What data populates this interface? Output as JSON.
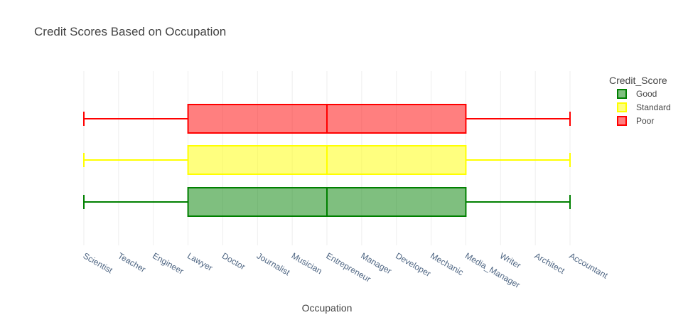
{
  "chart_data": {
    "type": "box",
    "orientation": "horizontal",
    "title": "Credit Scores Based on Occupation",
    "xlabel": "Occupation",
    "ylabel": "",
    "categories": [
      "Scientist",
      "Teacher",
      "Engineer",
      "Lawyer",
      "Doctor",
      "Journalist",
      "Musician",
      "Entrepreneur",
      "Manager",
      "Developer",
      "Mechanic",
      "Media_Manager",
      "Writer",
      "Architect",
      "Accountant"
    ],
    "grid": true,
    "legend": {
      "title": "Credit_Score",
      "position": "top-right"
    },
    "series": [
      {
        "name": "Good",
        "color": "#008000",
        "fill": "rgba(0,128,0,0.5)",
        "min": "Scientist",
        "q1": "Lawyer",
        "median": "Entrepreneur",
        "q3": "Media_Manager",
        "max": "Accountant"
      },
      {
        "name": "Standard",
        "color": "#ffff00",
        "fill": "rgba(255,255,0,0.5)",
        "min": "Scientist",
        "q1": "Lawyer",
        "median": "Entrepreneur",
        "q3": "Media_Manager",
        "max": "Accountant"
      },
      {
        "name": "Poor",
        "color": "#ff0000",
        "fill": "rgba(255,0,0,0.5)",
        "min": "Scientist",
        "q1": "Lawyer",
        "median": "Entrepreneur",
        "q3": "Media_Manager",
        "max": "Accountant"
      }
    ]
  }
}
